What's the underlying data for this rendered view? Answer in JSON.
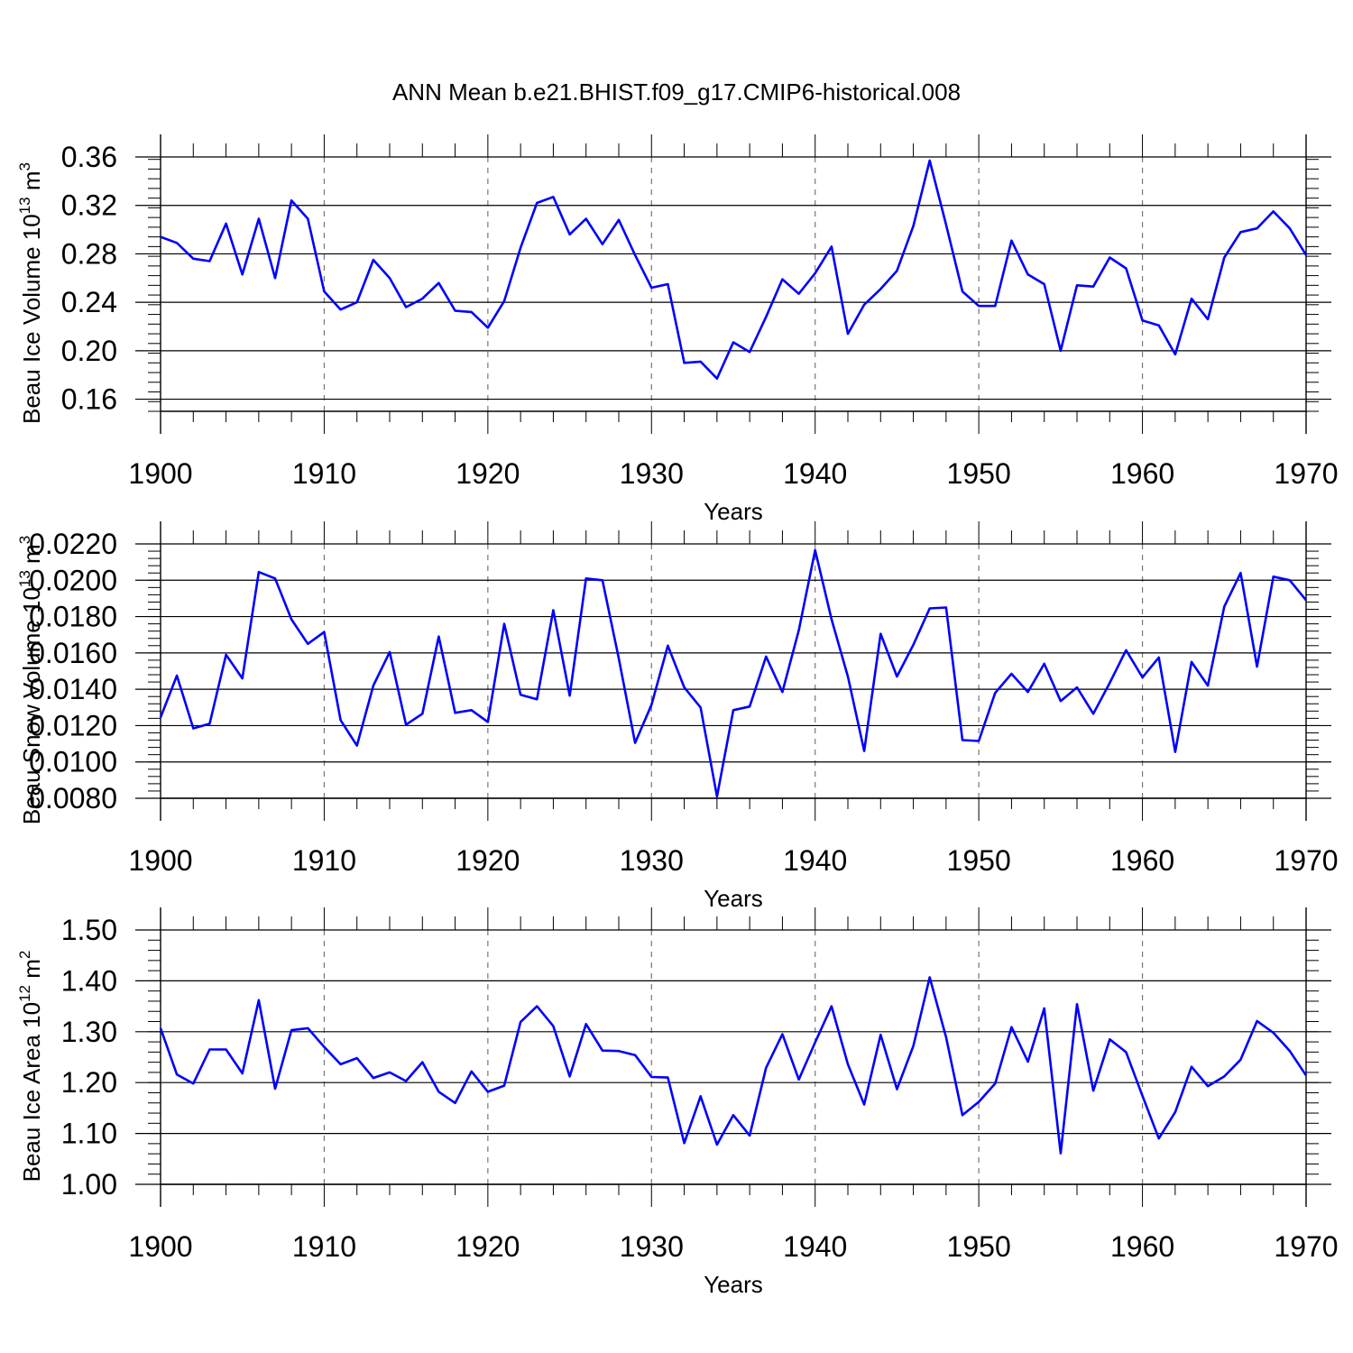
{
  "title": "ANN Mean b.e21.BHIST.f09_g17.CMIP6-historical.008",
  "line_color": "#0000ff",
  "chart_data": [
    {
      "type": "line",
      "xlabel": "Years",
      "ylabel": {
        "main": "Beau Ice Volume 10",
        "exp": "13",
        "unit": " m",
        "unit_exp": "3"
      },
      "xlim": [
        1900,
        1970
      ],
      "ylim": [
        0.15,
        0.36
      ],
      "xticks": [
        1900,
        1910,
        1920,
        1930,
        1940,
        1950,
        1960,
        1970
      ],
      "ytick_values": [
        0.16,
        0.2,
        0.24,
        0.28,
        0.32,
        0.36
      ],
      "ytick_labels": [
        "0.16",
        "0.20",
        "0.24",
        "0.28",
        "0.32",
        "0.36"
      ],
      "yminor_step": 0.008,
      "grid_x": "dashed vertical at major years",
      "series": [
        {
          "x_start": 1900,
          "values": [
            0.294,
            0.289,
            0.276,
            0.274,
            0.305,
            0.263,
            0.309,
            0.26,
            0.324,
            0.309,
            0.249,
            0.234,
            0.24,
            0.275,
            0.26,
            0.236,
            0.243,
            0.256,
            0.233,
            0.232,
            0.219,
            0.241,
            0.285,
            0.322,
            0.327,
            0.296,
            0.309,
            0.288,
            0.308,
            0.279,
            0.252,
            0.255,
            0.19,
            0.191,
            0.177,
            0.207,
            0.199,
            0.228,
            0.259,
            0.247,
            0.264,
            0.286,
            0.214,
            0.238,
            0.251,
            0.266,
            0.303,
            0.357,
            0.304,
            0.249,
            0.237,
            0.237,
            0.291,
            0.263,
            0.255,
            0.2,
            0.254,
            0.253,
            0.277,
            0.268,
            0.225,
            0.221,
            0.197,
            0.243,
            0.226,
            0.277,
            0.298,
            0.301,
            0.315,
            0.301,
            0.279
          ]
        }
      ]
    },
    {
      "type": "line",
      "xlabel": "Years",
      "ylabel": {
        "main": "Beau Snow Volume 10",
        "exp": "13",
        "unit": " m",
        "unit_exp": "3"
      },
      "xlim": [
        1900,
        1970
      ],
      "ylim": [
        0.008,
        0.022
      ],
      "xticks": [
        1900,
        1910,
        1920,
        1930,
        1940,
        1950,
        1960,
        1970
      ],
      "ytick_values": [
        0.008,
        0.01,
        0.012,
        0.014,
        0.016,
        0.018,
        0.02,
        0.022
      ],
      "ytick_labels": [
        "0.0080",
        "0.0100",
        "0.0120",
        "0.0140",
        "0.0160",
        "0.0180",
        "0.0200",
        "0.0220"
      ],
      "yminor_step": 0.0004,
      "grid_x": "dashed vertical at major years",
      "series": [
        {
          "x_start": 1900,
          "values": [
            0.01245,
            0.01475,
            0.01185,
            0.0121,
            0.0159,
            0.0146,
            0.02045,
            0.0201,
            0.01785,
            0.0165,
            0.01715,
            0.0123,
            0.0109,
            0.0142,
            0.01605,
            0.01205,
            0.01265,
            0.0169,
            0.0127,
            0.01285,
            0.0122,
            0.0176,
            0.0137,
            0.01345,
            0.01835,
            0.01365,
            0.0201,
            0.02,
            0.0157,
            0.01105,
            0.01315,
            0.0164,
            0.0141,
            0.013,
            0.0081,
            0.01285,
            0.01305,
            0.0158,
            0.01385,
            0.01725,
            0.02165,
            0.01785,
            0.0147,
            0.0106,
            0.01705,
            0.0147,
            0.01645,
            0.01845,
            0.0185,
            0.0112,
            0.01115,
            0.0138,
            0.01485,
            0.01385,
            0.0154,
            0.01335,
            0.0141,
            0.01265,
            0.01435,
            0.01615,
            0.01465,
            0.01575,
            0.01055,
            0.0155,
            0.0142,
            0.01855,
            0.0204,
            0.01525,
            0.0202,
            0.02,
            0.0189
          ]
        }
      ]
    },
    {
      "type": "line",
      "xlabel": "Years",
      "ylabel": {
        "main": "Beau Ice Area 10",
        "exp": "12",
        "unit": " m",
        "unit_exp": "2"
      },
      "xlim": [
        1900,
        1970
      ],
      "ylim": [
        1.0,
        1.5
      ],
      "xticks": [
        1900,
        1910,
        1920,
        1930,
        1940,
        1950,
        1960,
        1970
      ],
      "ytick_values": [
        1.0,
        1.1,
        1.2,
        1.3,
        1.4,
        1.5
      ],
      "ytick_labels": [
        "1.00",
        "1.10",
        "1.20",
        "1.30",
        "1.40",
        "1.50"
      ],
      "yminor_step": 0.02,
      "grid_x": "dashed vertical at major years",
      "series": [
        {
          "x_start": 1900,
          "values": [
            1.307,
            1.216,
            1.198,
            1.265,
            1.265,
            1.218,
            1.362,
            1.188,
            1.303,
            1.307,
            1.27,
            1.236,
            1.248,
            1.209,
            1.22,
            1.203,
            1.24,
            1.182,
            1.16,
            1.222,
            1.182,
            1.194,
            1.319,
            1.35,
            1.311,
            1.212,
            1.315,
            1.263,
            1.262,
            1.254,
            1.211,
            1.21,
            1.081,
            1.173,
            1.078,
            1.136,
            1.096,
            1.229,
            1.295,
            1.206,
            1.279,
            1.35,
            1.236,
            1.157,
            1.294,
            1.187,
            1.272,
            1.407,
            1.289,
            1.136,
            1.162,
            1.198,
            1.309,
            1.241,
            1.346,
            1.061,
            1.354,
            1.184,
            1.285,
            1.26,
            1.174,
            1.09,
            1.142,
            1.231,
            1.193,
            1.212,
            1.245,
            1.321,
            1.298,
            1.262,
            1.214
          ]
        }
      ]
    }
  ]
}
